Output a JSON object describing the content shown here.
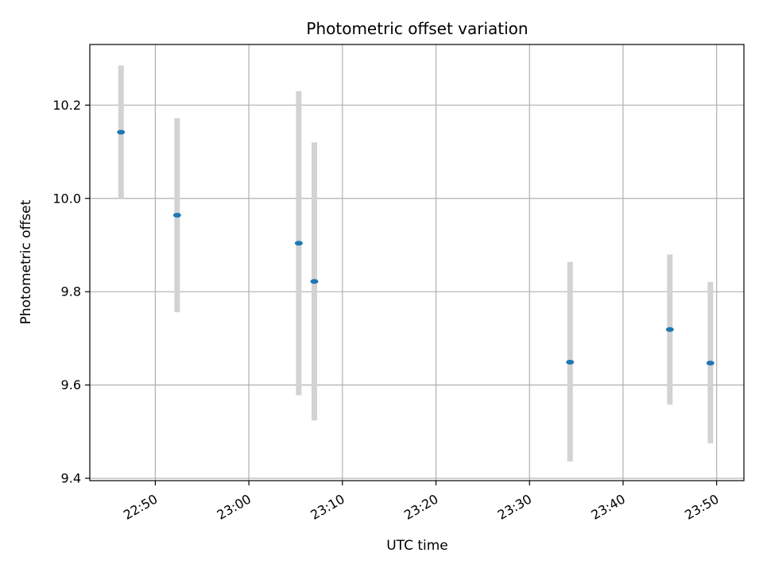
{
  "chart_data": {
    "type": "scatter",
    "title": "Photometric offset variation",
    "xlabel": "UTC time",
    "ylabel": "Photometric offset",
    "x_ticks": [
      "22:50",
      "23:00",
      "23:10",
      "23:20",
      "23:30",
      "23:40",
      "23:50"
    ],
    "x_tick_values": [
      "22:50",
      "23:00",
      "23:10",
      "23:20",
      "23:30",
      "23:40",
      "23:50"
    ],
    "y_ticks": [
      "9.4",
      "9.6",
      "9.8",
      "10.0",
      "10.2"
    ],
    "y_tick_values": [
      9.4,
      9.6,
      9.8,
      10.0,
      10.2
    ],
    "xlim": [
      "22:43:00",
      "23:52:55"
    ],
    "ylim": [
      9.395,
      10.33
    ],
    "grid": true,
    "points": [
      {
        "x": "22:46:20",
        "y": 10.142,
        "err_low": 10.0,
        "err_high": 10.285
      },
      {
        "x": "22:52:20",
        "y": 9.964,
        "err_low": 9.756,
        "err_high": 10.172
      },
      {
        "x": "23:05:20",
        "y": 9.904,
        "err_low": 9.578,
        "err_high": 10.23
      },
      {
        "x": "23:07:00",
        "y": 9.822,
        "err_low": 9.524,
        "err_high": 10.12
      },
      {
        "x": "23:34:20",
        "y": 9.649,
        "err_low": 9.436,
        "err_high": 9.864
      },
      {
        "x": "23:45:00",
        "y": 9.719,
        "err_low": 9.558,
        "err_high": 9.88
      },
      {
        "x": "23:49:20",
        "y": 9.647,
        "err_low": 9.475,
        "err_high": 9.821
      }
    ],
    "colors": {
      "point": "#1f77b4",
      "errorbar": "#d3d3d3",
      "grid": "#b0b0b0",
      "axes": "#000000"
    }
  }
}
